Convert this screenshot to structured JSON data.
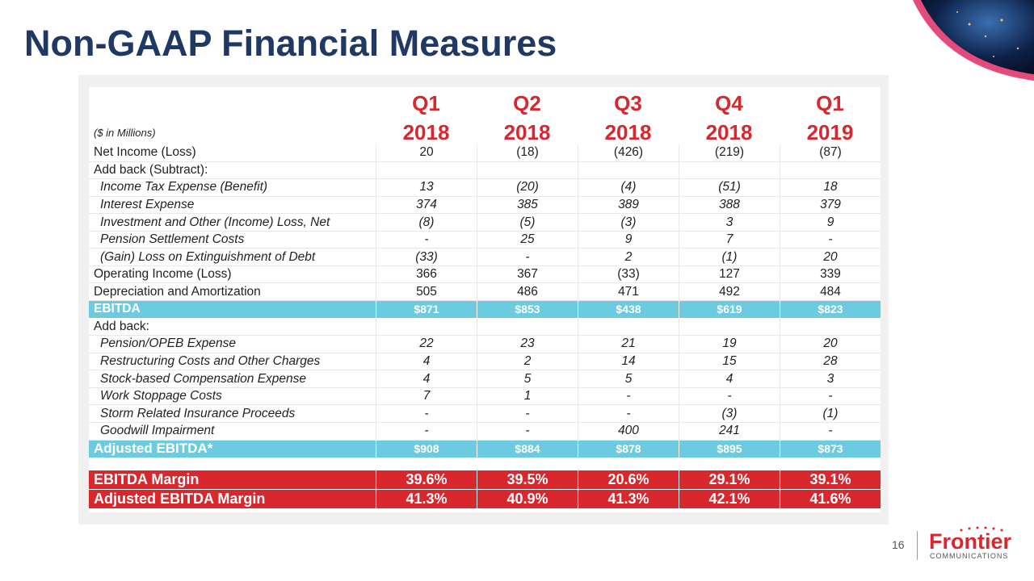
{
  "header": {
    "title": "Non-GAAP Financial Measures"
  },
  "table": {
    "note": "($ in Millions)",
    "columns": [
      {
        "period": "Q1",
        "year": "2018"
      },
      {
        "period": "Q2",
        "year": "2018"
      },
      {
        "period": "Q3",
        "year": "2018"
      },
      {
        "period": "Q4",
        "year": "2018"
      },
      {
        "period": "Q1",
        "year": "2019"
      }
    ],
    "rows": [
      {
        "label": "Net Income (Loss)",
        "values": [
          "20",
          "(18)",
          "(426)",
          "(219)",
          "(87)"
        ]
      },
      {
        "label": "Add back (Subtract):",
        "values": []
      },
      {
        "label": "Income Tax Expense (Benefit)",
        "values": [
          "13",
          "(20)",
          "(4)",
          "(51)",
          "18"
        ]
      },
      {
        "label": "Interest Expense",
        "values": [
          "374",
          "385",
          "389",
          "388",
          "379"
        ]
      },
      {
        "label": "Investment and Other (Income) Loss, Net",
        "values": [
          "(8)",
          "(5)",
          "(3)",
          "3",
          "9"
        ]
      },
      {
        "label": "Pension Settlement Costs",
        "values": [
          "-",
          "25",
          "9",
          "7",
          "-"
        ]
      },
      {
        "label": "(Gain) Loss on Extinguishment of Debt",
        "values": [
          "(33)",
          "-",
          "2",
          "(1)",
          "20"
        ]
      },
      {
        "label": "Operating Income (Loss)",
        "values": [
          "366",
          "367",
          "(33)",
          "127",
          "339"
        ]
      },
      {
        "label": "Depreciation and Amortization",
        "values": [
          "505",
          "486",
          "471",
          "492",
          "484"
        ]
      },
      {
        "label": "EBITDA",
        "values": [
          "$871",
          "$853",
          "$438",
          "$619",
          "$823"
        ]
      },
      {
        "label": "Add back:",
        "values": []
      },
      {
        "label": "Pension/OPEB Expense",
        "values": [
          "22",
          "23",
          "21",
          "19",
          "20"
        ]
      },
      {
        "label": "Restructuring Costs and Other Charges",
        "values": [
          "4",
          "2",
          "14",
          "15",
          "28"
        ]
      },
      {
        "label": "Stock-based Compensation Expense",
        "values": [
          "4",
          "5",
          "5",
          "4",
          "3"
        ]
      },
      {
        "label": "Work Stoppage Costs",
        "values": [
          "7",
          "1",
          "-",
          "-",
          "-"
        ]
      },
      {
        "label": "Storm Related Insurance Proceeds",
        "values": [
          "-",
          "-",
          "-",
          "(3)",
          "(1)"
        ]
      },
      {
        "label": "Goodwill Impairment",
        "values": [
          "-",
          "-",
          "400",
          "241",
          "-"
        ]
      },
      {
        "label": "Adjusted EBITDA*",
        "values": [
          "$908",
          "$884",
          "$878",
          "$895",
          "$873"
        ]
      },
      {
        "label": "EBITDA Margin",
        "values": [
          "39.6%",
          "39.5%",
          "20.6%",
          "29.1%",
          "39.1%"
        ]
      },
      {
        "label": "Adjusted EBITDA Margin",
        "values": [
          "41.3%",
          "40.9%",
          "41.3%",
          "42.1%",
          "41.6%"
        ]
      }
    ]
  },
  "footer": {
    "page": "16",
    "logo": "Frontier",
    "logo_sub": "COMMUNICATIONS"
  }
}
